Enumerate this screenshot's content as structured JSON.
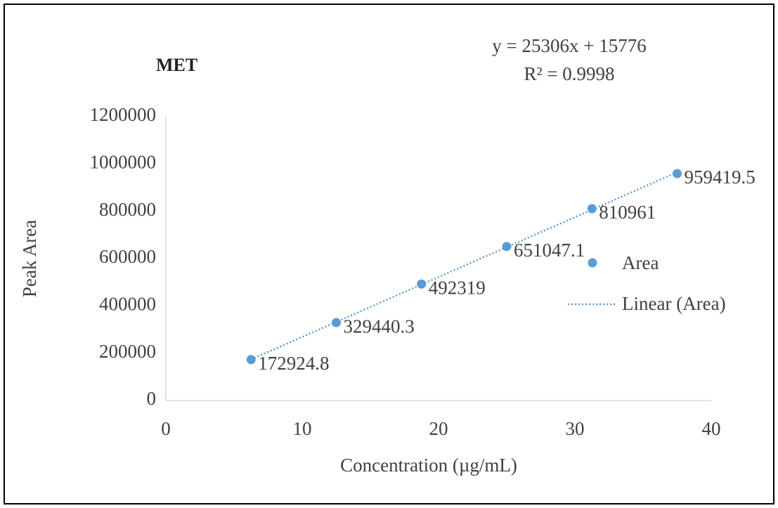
{
  "chart_data": {
    "type": "scatter",
    "title": "MET",
    "x_label": "Concentration  (µg/mL)",
    "y_label": "Peak Area",
    "series": [
      {
        "name": "Area",
        "color": "#5b9bd5",
        "x": [
          6.25,
          12.5,
          18.75,
          25,
          31.25,
          37.5
        ],
        "values": [
          172924.8,
          329440.3,
          492319,
          651047.1,
          810961,
          959419.5
        ]
      }
    ],
    "trendline": {
      "name": "Linear (Area)",
      "slope": 25306,
      "intercept": 15776,
      "equation": "y = 25306x + 15776",
      "r_squared": "R² = 0.9998"
    },
    "xlim": [
      0,
      40
    ],
    "xticks": [
      0,
      10,
      20,
      30,
      40
    ],
    "ylim": [
      0,
      1200000
    ],
    "yticks": [
      0,
      200000,
      400000,
      600000,
      800000,
      1000000,
      1200000
    ],
    "grid": false,
    "legend": "right"
  }
}
